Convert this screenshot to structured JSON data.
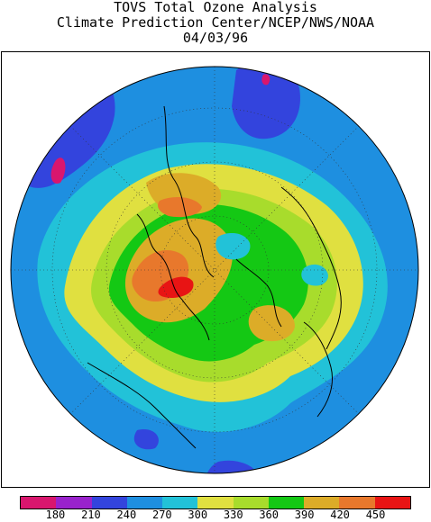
{
  "title": {
    "line1": "TOVS Total Ozone Analysis",
    "line2": "Climate Prediction Center/NCEP/NWS/NOAA",
    "line3": "04/03/96"
  },
  "map": {
    "projection": "polar-stereographic-north",
    "variable": "total ozone",
    "date": "04/03/96"
  },
  "legend": {
    "colors": [
      "#d9166e",
      "#9922cc",
      "#3344dd",
      "#1e8fe0",
      "#22c2d8",
      "#e0e040",
      "#a8dc2c",
      "#14c814",
      "#dcac28",
      "#e8782c",
      "#e81414"
    ],
    "ticks": [
      "180",
      "210",
      "240",
      "270",
      "300",
      "330",
      "360",
      "390",
      "420",
      "450"
    ]
  },
  "colors": {
    "outside_disk": "#ffffff",
    "frame": "#000000",
    "coastline": "#000000"
  }
}
